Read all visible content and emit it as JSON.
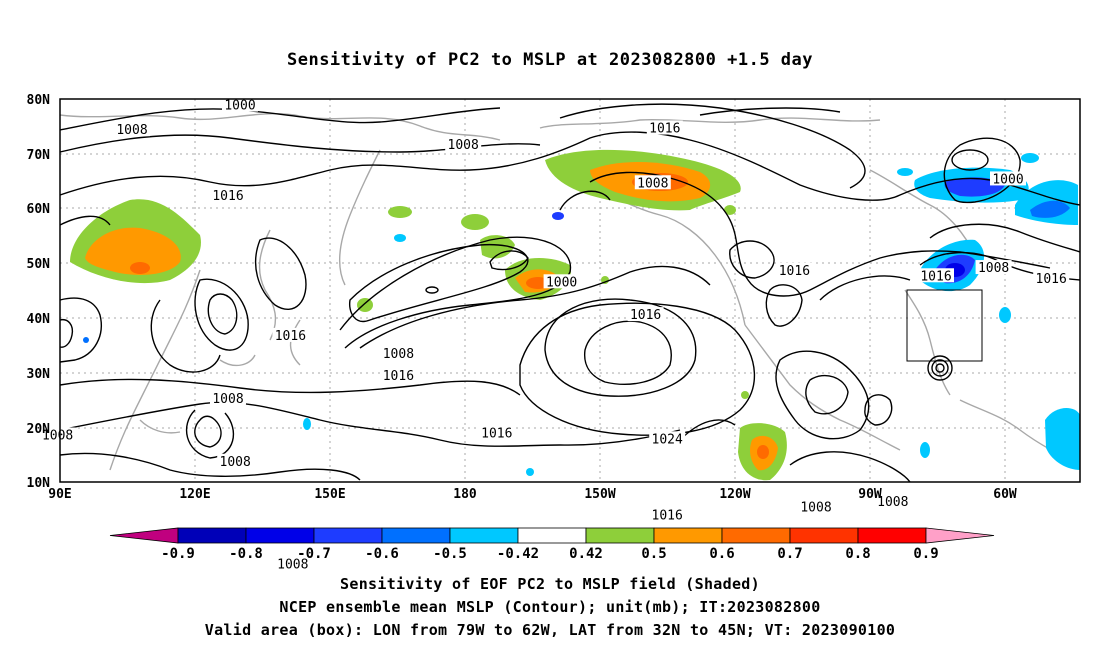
{
  "title": "Sensitivity of PC2 to MSLP at 2023082800 +1.5 day",
  "lat_labels": [
    "80N",
    "70N",
    "60N",
    "50N",
    "40N",
    "30N",
    "20N",
    "10N"
  ],
  "lon_labels": [
    "90E",
    "120E",
    "150E",
    "180",
    "150W",
    "120W",
    "90W",
    "60W"
  ],
  "contour_labels": [
    {
      "text": "1000",
      "lon": 127.5,
      "lat": 78.8
    },
    {
      "text": "1008",
      "lon": 105,
      "lat": 74.3
    },
    {
      "text": "1008",
      "lon": 174,
      "lat": 71.6
    },
    {
      "text": "1016",
      "lon": -144,
      "lat": 74.6
    },
    {
      "text": "1008",
      "lon": -146.5,
      "lat": 64.6
    },
    {
      "text": "1000",
      "lon": -72.5,
      "lat": 65.3
    },
    {
      "text": "1016",
      "lon": 125,
      "lat": 62.3
    },
    {
      "text": "1016",
      "lon": -117,
      "lat": 48.6
    },
    {
      "text": "1008",
      "lon": -75.5,
      "lat": 49.1
    },
    {
      "text": "1016",
      "lon": -63.5,
      "lat": 47.1
    },
    {
      "text": "1000",
      "lon": -165.5,
      "lat": 46.5
    },
    {
      "text": "1016",
      "lon": -87.5,
      "lat": 47.6
    },
    {
      "text": "1016",
      "lon": -148,
      "lat": 40.5
    },
    {
      "text": "1016",
      "lon": 138,
      "lat": 36.7
    },
    {
      "text": "1008",
      "lon": 160.5,
      "lat": 33.4
    },
    {
      "text": "1016",
      "lon": 160.5,
      "lat": 29.4
    },
    {
      "text": "1008",
      "lon": 125,
      "lat": 25.2
    },
    {
      "text": "1016",
      "lon": -179,
      "lat": 18.9
    },
    {
      "text": "1024",
      "lon": -143.5,
      "lat": 17.8
    },
    {
      "text": "1008",
      "lon": 89.5,
      "lat": 18.5
    },
    {
      "text": "1008",
      "lon": 126.5,
      "lat": 13.7
    },
    {
      "text": "1016",
      "lon": -143.5,
      "lat": 3.9
    },
    {
      "text": "1008",
      "lon": -112.5,
      "lat": 5.3
    },
    {
      "text": "1008",
      "lon": -96.5,
      "lat": 6.3
    },
    {
      "text": "1008",
      "lon": 138.5,
      "lat": -5.1
    }
  ],
  "colorbar": {
    "colors": [
      "#c0007f",
      "#0000b8",
      "#0000e8",
      "#1e3cff",
      "#0070ff",
      "#00c8ff",
      "#ffffff",
      "#8ecf3a",
      "#ff9900",
      "#ff6a00",
      "#ff3300",
      "#ff0000",
      "#ffa0c8"
    ],
    "labels": [
      "-0.9",
      "-0.8",
      "-0.7",
      "-0.6",
      "-0.5",
      "-0.42",
      "0.42",
      "0.5",
      "0.6",
      "0.7",
      "0.8",
      "0.9"
    ]
  },
  "footer": {
    "line1": "Sensitivity of EOF PC2 to MSLP field (Shaded)",
    "line2": "NCEP ensemble mean MSLP (Contour); unit(mb); IT:2023082800",
    "line3": "Valid area (box): LON from 79W to 62W, LAT from 32N to 45N; VT: 2023090100"
  }
}
